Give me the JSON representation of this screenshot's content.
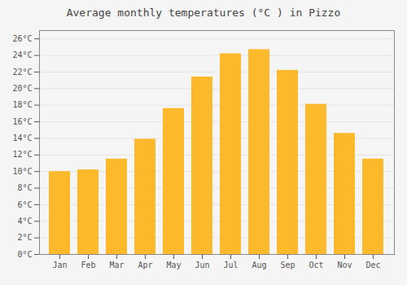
{
  "chart_data": {
    "type": "bar",
    "title": "Average monthly temperatures (°C ) in Pizzo",
    "categories": [
      "Jan",
      "Feb",
      "Mar",
      "Apr",
      "May",
      "Jun",
      "Jul",
      "Aug",
      "Sep",
      "Oct",
      "Nov",
      "Dec"
    ],
    "values": [
      10.0,
      10.2,
      11.5,
      13.9,
      17.6,
      21.4,
      24.2,
      24.7,
      22.2,
      18.1,
      14.6,
      11.5
    ],
    "color": "#FDB92C",
    "ylim": [
      0,
      27
    ],
    "yticks": [
      {
        "value": 0,
        "label": "0°C"
      },
      {
        "value": 2,
        "label": "2°C"
      },
      {
        "value": 4,
        "label": "4°C"
      },
      {
        "value": 6,
        "label": "6°C"
      },
      {
        "value": 8,
        "label": "8°C"
      },
      {
        "value": 10,
        "label": "10°C"
      },
      {
        "value": 12,
        "label": "12°C"
      },
      {
        "value": 14,
        "label": "14°C"
      },
      {
        "value": 16,
        "label": "16°C"
      },
      {
        "value": 18,
        "label": "18°C"
      },
      {
        "value": 20,
        "label": "20°C"
      },
      {
        "value": 22,
        "label": "22°C"
      },
      {
        "value": 24,
        "label": "24°C"
      },
      {
        "value": 26,
        "label": "26°C"
      }
    ],
    "grid": true
  }
}
